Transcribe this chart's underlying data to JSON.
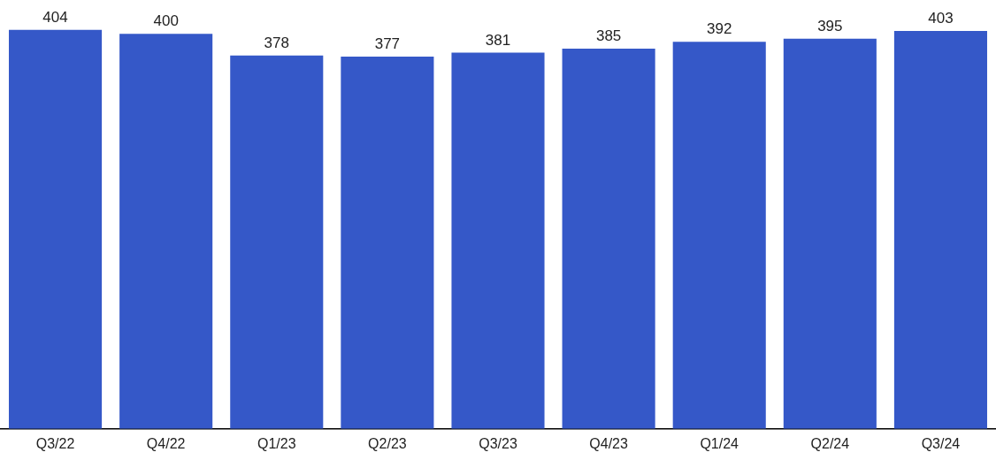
{
  "chart_data": {
    "type": "bar",
    "categories": [
      "Q3/22",
      "Q4/22",
      "Q1/23",
      "Q2/23",
      "Q3/23",
      "Q4/23",
      "Q1/24",
      "Q2/24",
      "Q3/24"
    ],
    "values": [
      404,
      400,
      378,
      377,
      381,
      385,
      392,
      395,
      403
    ],
    "color": "#3558c8",
    "data_labels": true,
    "grid": false,
    "legend": false
  }
}
